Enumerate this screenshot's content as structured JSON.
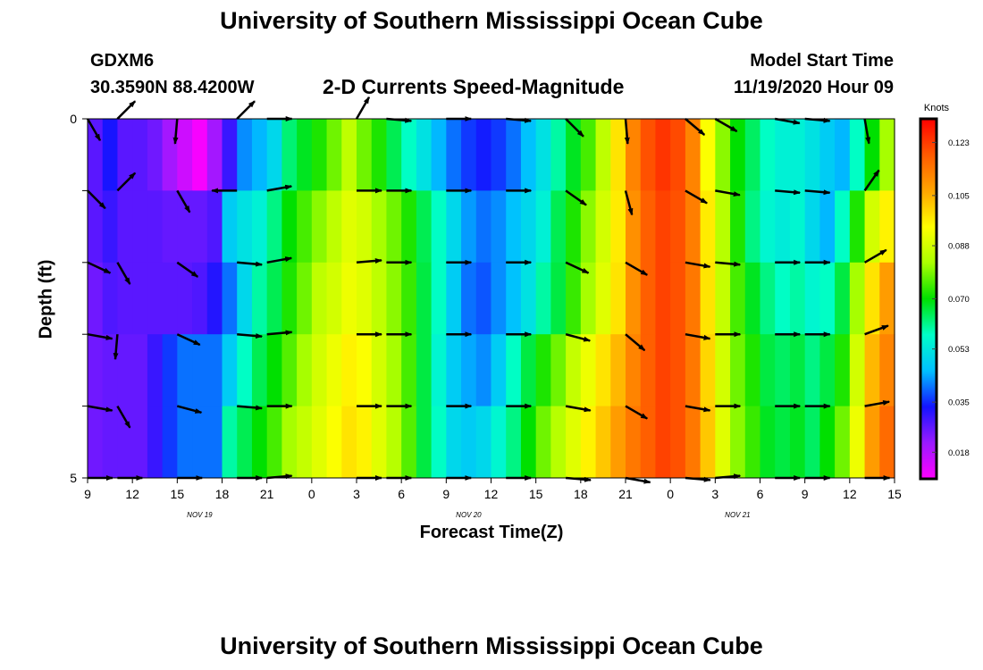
{
  "title": "University of Southern Mississippi Ocean Cube",
  "footer_title": "University of Southern Mississippi Ocean Cube",
  "station": {
    "id": "GDXM6",
    "coords": "30.3590N 88.4200W"
  },
  "product": "2-D Currents Speed-Magnitude",
  "model_start": {
    "label": "Model Start Time",
    "value": "11/19/2020 Hour 09"
  },
  "chart_data": {
    "type": "heatmap",
    "title": "2-D Currents Speed-Magnitude",
    "xlabel": "Forecast Time(Z)",
    "ylabel": "Depth (ft)",
    "x_ticks": [
      "9",
      "12",
      "15",
      "18",
      "21",
      "0",
      "3",
      "6",
      "9",
      "12",
      "15",
      "18",
      "21",
      "0",
      "3",
      "6",
      "9",
      "12",
      "15"
    ],
    "date_labels": [
      {
        "label": "NOV 19",
        "tick_index": 2.5
      },
      {
        "label": "NOV 20",
        "tick_index": 8.5
      },
      {
        "label": "NOV 21",
        "tick_index": 14.5
      }
    ],
    "y_ticks": [
      "0",
      "",
      "",
      "",
      "",
      "5"
    ],
    "ylim": [
      0,
      5
    ],
    "x_range_hours": [
      0,
      54
    ],
    "time_step_hours": 1,
    "depth_bins": 5,
    "colorbar": {
      "unit": "Knots",
      "ticks": [
        "0.123",
        "0.105",
        "0.088",
        "0.070",
        "0.053",
        "0.035",
        "0.018"
      ],
      "range": [
        0.009,
        0.131
      ],
      "colors": [
        "#ff00ff",
        "#9a1aff",
        "#1414ff",
        "#00c0ff",
        "#00ffc8",
        "#00e000",
        "#aaff00",
        "#ffff00",
        "#ffa500",
        "#ff5a00",
        "#ff0000"
      ]
    },
    "speed_knots": [
      [
        0.027,
        0.033,
        0.027,
        0.027,
        0.025,
        0.02,
        0.015,
        0.01,
        0.02,
        0.03,
        0.042,
        0.045,
        0.05,
        0.063,
        0.068,
        0.072,
        0.078,
        0.085,
        0.078,
        0.072,
        0.065,
        0.058,
        0.052,
        0.045,
        0.04,
        0.036,
        0.034,
        0.036,
        0.04,
        0.046,
        0.052,
        0.06,
        0.068,
        0.075,
        0.085,
        0.098,
        0.112,
        0.12,
        0.124,
        0.121,
        0.112,
        0.094,
        0.08,
        0.07,
        0.064,
        0.058,
        0.055,
        0.055,
        0.052,
        0.048,
        0.045,
        0.058,
        0.07,
        0.082
      ],
      [
        0.027,
        0.03,
        0.027,
        0.027,
        0.027,
        0.026,
        0.026,
        0.026,
        0.028,
        0.048,
        0.052,
        0.055,
        0.062,
        0.07,
        0.075,
        0.08,
        0.085,
        0.09,
        0.088,
        0.082,
        0.078,
        0.072,
        0.065,
        0.058,
        0.05,
        0.043,
        0.04,
        0.042,
        0.046,
        0.05,
        0.055,
        0.065,
        0.072,
        0.08,
        0.088,
        0.097,
        0.11,
        0.118,
        0.122,
        0.12,
        0.113,
        0.097,
        0.084,
        0.072,
        0.062,
        0.056,
        0.054,
        0.056,
        0.05,
        0.045,
        0.058,
        0.072,
        0.088,
        0.096
      ],
      [
        0.025,
        0.028,
        0.027,
        0.027,
        0.027,
        0.027,
        0.027,
        0.028,
        0.032,
        0.04,
        0.05,
        0.06,
        0.065,
        0.072,
        0.078,
        0.085,
        0.088,
        0.092,
        0.09,
        0.085,
        0.08,
        0.074,
        0.066,
        0.058,
        0.048,
        0.04,
        0.038,
        0.042,
        0.046,
        0.052,
        0.06,
        0.066,
        0.074,
        0.082,
        0.09,
        0.098,
        0.11,
        0.118,
        0.122,
        0.12,
        0.114,
        0.098,
        0.086,
        0.075,
        0.068,
        0.062,
        0.058,
        0.06,
        0.056,
        0.058,
        0.066,
        0.082,
        0.098,
        0.108
      ],
      [
        0.025,
        0.026,
        0.026,
        0.026,
        0.03,
        0.036,
        0.04,
        0.04,
        0.04,
        0.048,
        0.058,
        0.065,
        0.07,
        0.076,
        0.082,
        0.088,
        0.092,
        0.096,
        0.094,
        0.088,
        0.082,
        0.075,
        0.066,
        0.056,
        0.048,
        0.044,
        0.042,
        0.048,
        0.058,
        0.066,
        0.072,
        0.078,
        0.086,
        0.092,
        0.098,
        0.104,
        0.112,
        0.118,
        0.122,
        0.12,
        0.114,
        0.1,
        0.088,
        0.078,
        0.072,
        0.066,
        0.064,
        0.066,
        0.062,
        0.066,
        0.072,
        0.088,
        0.104,
        0.112
      ],
      [
        0.025,
        0.026,
        0.026,
        0.026,
        0.03,
        0.036,
        0.04,
        0.04,
        0.04,
        0.06,
        0.065,
        0.07,
        0.075,
        0.082,
        0.086,
        0.09,
        0.094,
        0.098,
        0.096,
        0.09,
        0.084,
        0.076,
        0.066,
        0.058,
        0.05,
        0.048,
        0.05,
        0.056,
        0.062,
        0.07,
        0.078,
        0.084,
        0.09,
        0.096,
        0.102,
        0.108,
        0.114,
        0.118,
        0.122,
        0.12,
        0.114,
        0.102,
        0.09,
        0.08,
        0.074,
        0.068,
        0.066,
        0.068,
        0.064,
        0.07,
        0.078,
        0.092,
        0.108,
        0.116
      ]
    ],
    "vector_rows_depth": [
      0,
      1,
      2,
      3,
      4,
      5
    ],
    "vector_times_hours": [
      0,
      2,
      6,
      10,
      12,
      18,
      20,
      24,
      28,
      32,
      36,
      40,
      42,
      46,
      48,
      52
    ],
    "vector_angles_deg": [
      [
        60,
        -45,
        95,
        -45,
        0,
        -60,
        5,
        0,
        5,
        45,
        85,
        40,
        30,
        10,
        5,
        80
      ],
      [
        45,
        -45,
        60,
        180,
        -10,
        0,
        0,
        0,
        0,
        35,
        75,
        30,
        10,
        5,
        5,
        -55
      ],
      [
        25,
        60,
        35,
        5,
        -10,
        -5,
        0,
        0,
        0,
        25,
        30,
        10,
        5,
        0,
        0,
        -30
      ],
      [
        10,
        95,
        25,
        5,
        -5,
        0,
        0,
        0,
        0,
        15,
        40,
        10,
        0,
        0,
        0,
        -20
      ],
      [
        10,
        60,
        15,
        5,
        0,
        0,
        0,
        0,
        0,
        10,
        30,
        10,
        0,
        0,
        0,
        -10
      ],
      [
        0,
        0,
        0,
        0,
        -5,
        0,
        0,
        0,
        0,
        5,
        10,
        5,
        -5,
        0,
        0,
        0
      ]
    ]
  }
}
